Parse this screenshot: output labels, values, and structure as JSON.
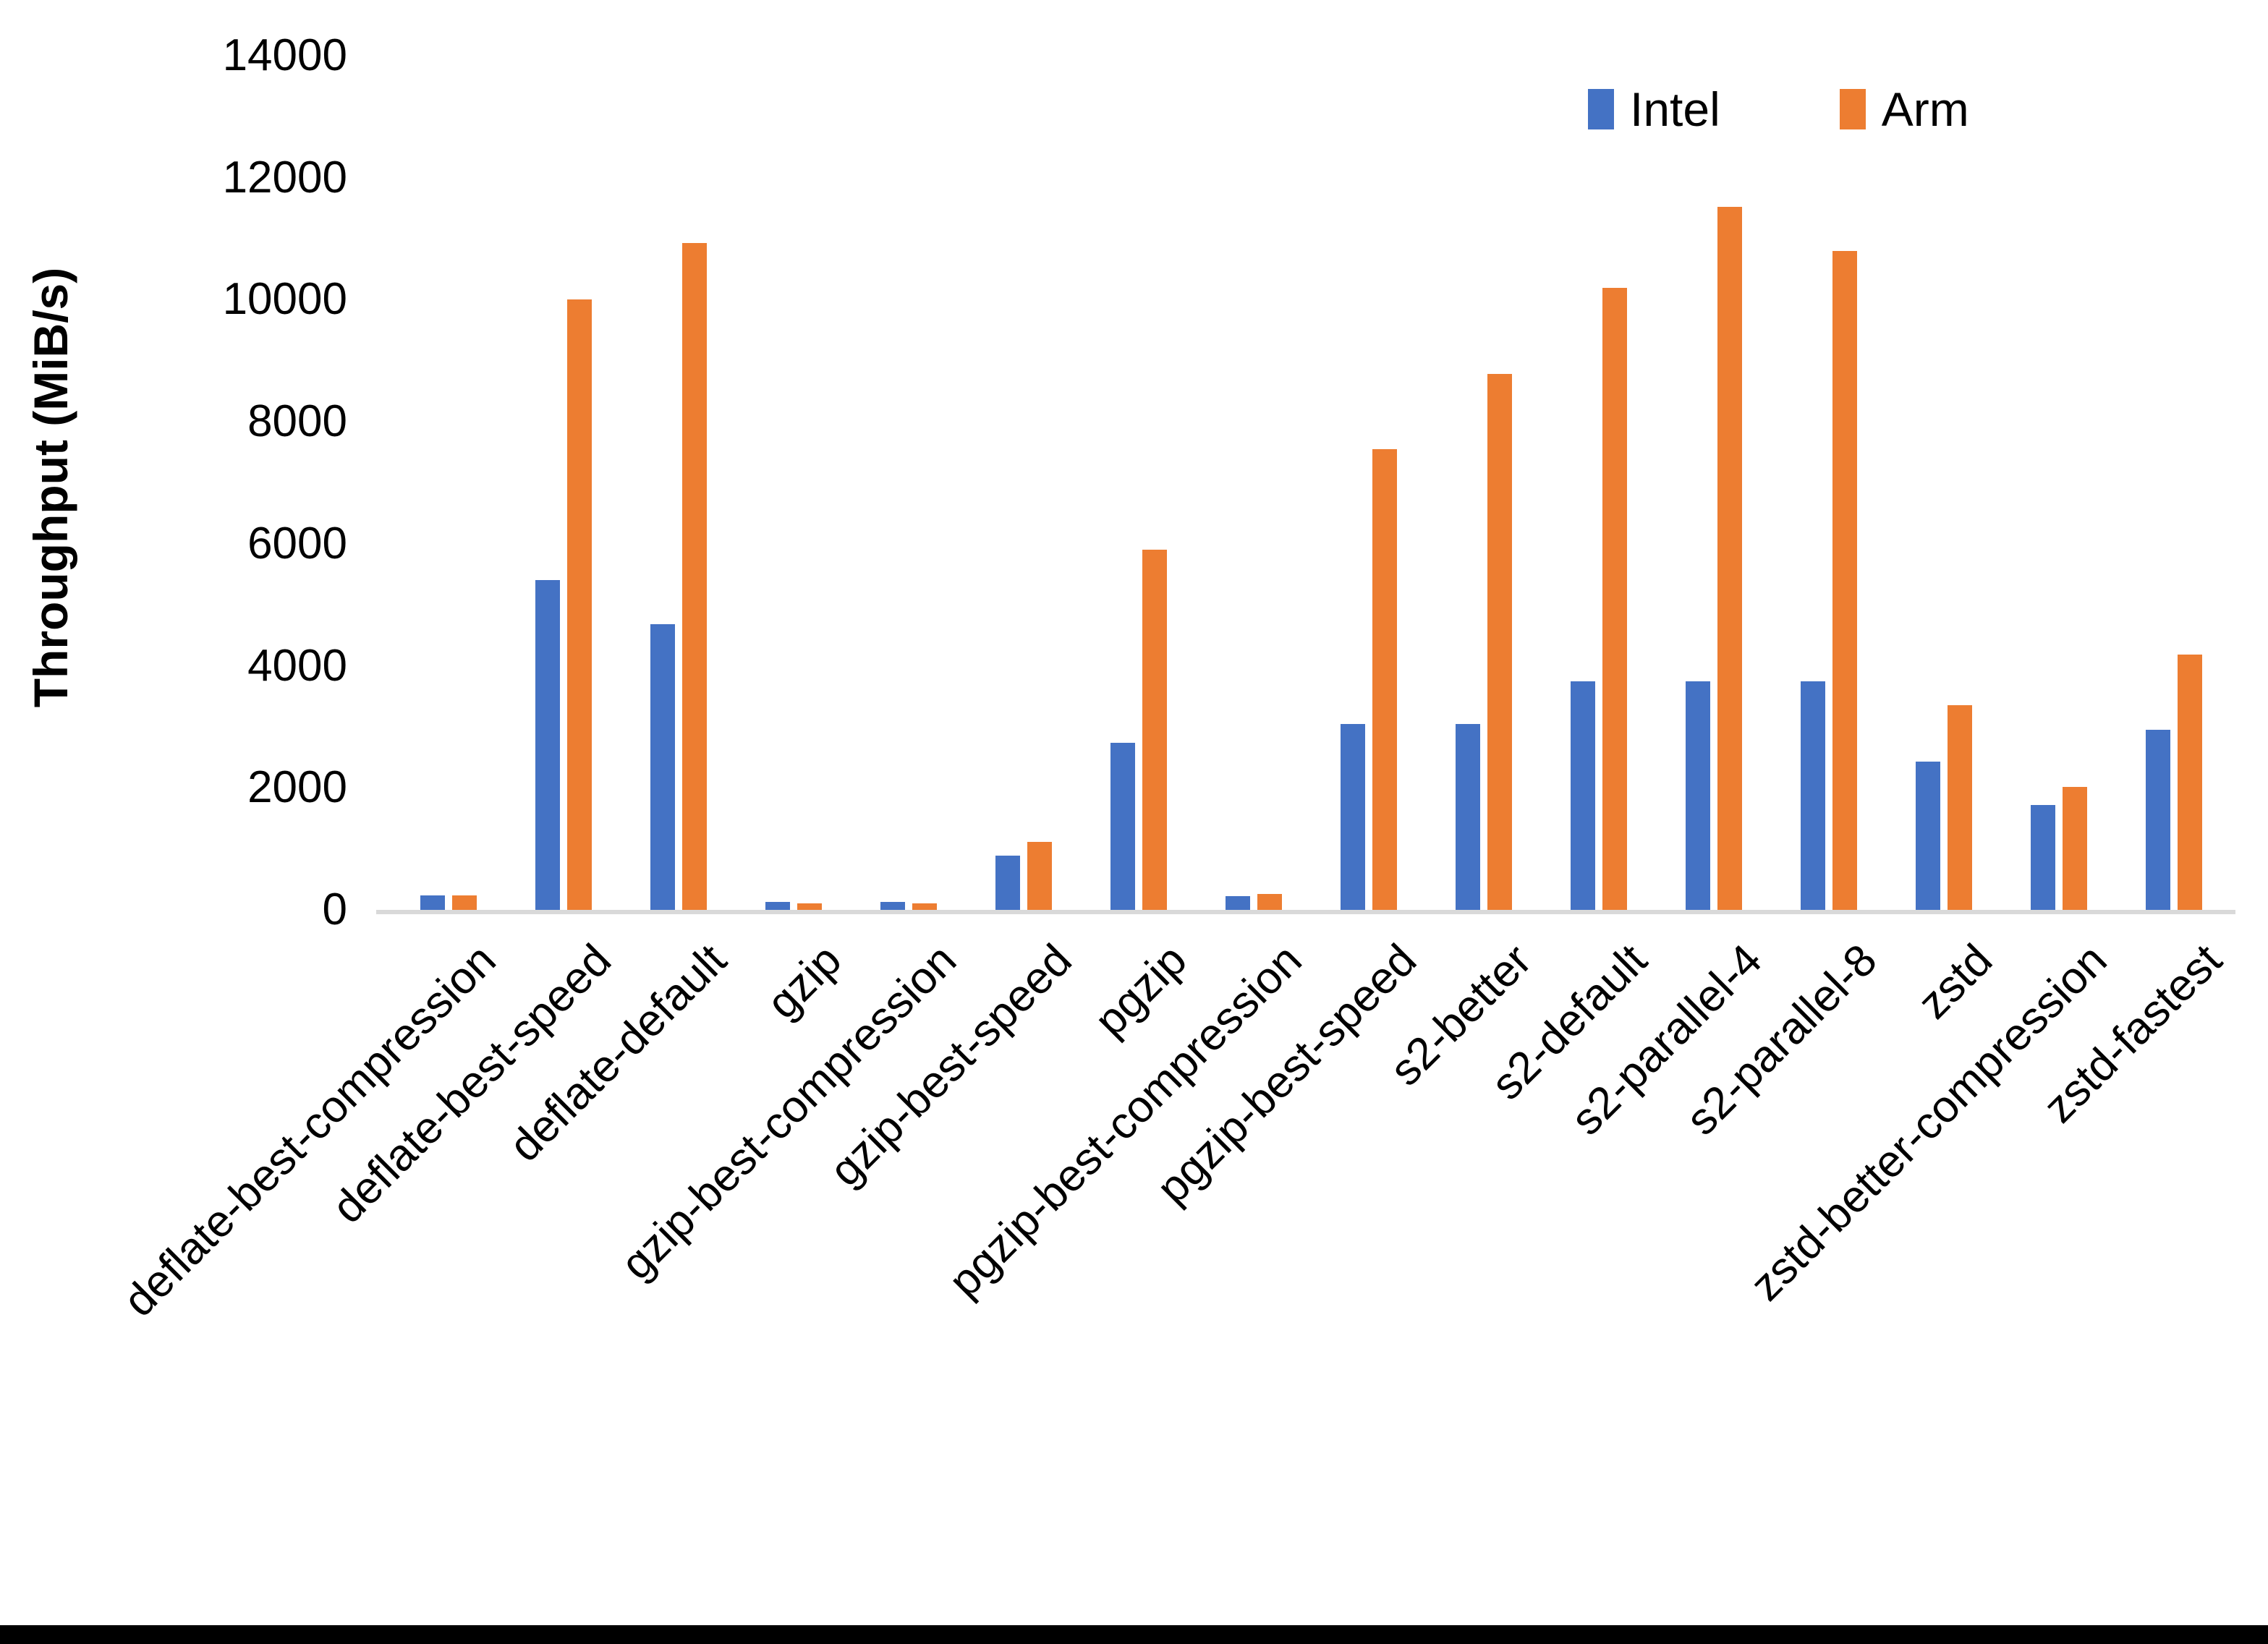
{
  "chart_data": {
    "type": "bar",
    "title": "",
    "ylabel": "Throughput (MiB/s)",
    "xlabel": "",
    "ylim": [
      0,
      14000
    ],
    "ytick_step": 2000,
    "ytick_labels": [
      "0",
      "2000",
      "4000",
      "6000",
      "8000",
      "10000",
      "12000",
      "14000"
    ],
    "grid": false,
    "legend_position": "top-right",
    "categories": [
      "deflate-best-compression",
      "deflate-best-speed",
      "deflate-default",
      "gzip",
      "gzip-best-compression",
      "gzip-best-speed",
      "pgzip",
      "pgzip-best-compression",
      "pgzip-best-speed",
      "s2-better",
      "s2-default",
      "s2-parallel-4",
      "s2-parallel-8",
      "zstd",
      "zstd-better-compression",
      "zstd-fastest"
    ],
    "series": [
      {
        "name": "Intel",
        "color": "#4472C4",
        "values": [
          240,
          5400,
          4680,
          135,
          135,
          890,
          2740,
          230,
          3050,
          3050,
          3750,
          3750,
          3750,
          2430,
          1720,
          2950
        ]
      },
      {
        "name": "Arm",
        "color": "#ED7D31",
        "values": [
          240,
          10000,
          10930,
          110,
          110,
          1110,
          5900,
          255,
          7550,
          8780,
          10200,
          11520,
          10800,
          3360,
          2020,
          4180
        ]
      }
    ]
  },
  "axis": {
    "y_title": "Throughput (MiB/s)",
    "baseline_color": "#d9d9d9"
  },
  "legend": {
    "items": [
      {
        "label": "Intel",
        "color": "#4472C4"
      },
      {
        "label": "Arm",
        "color": "#ED7D31"
      }
    ]
  }
}
